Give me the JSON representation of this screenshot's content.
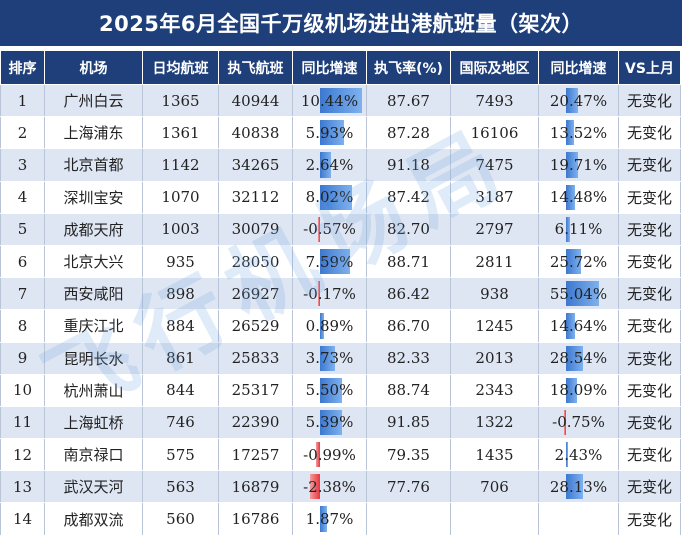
{
  "title": "2025年6月全国千万级机场进出港航班量（架次）",
  "watermark": "飞行机场局",
  "colors": {
    "header_bg": "#1e3f7a",
    "row_alt": "#dfe6f3",
    "bar_pos": "#3c78cf",
    "bar_neg": "#e8353b"
  },
  "columns": [
    "排序",
    "机场",
    "日均航班",
    "执飞航班",
    "同比增速",
    "执飞率(%)",
    "国际及地区",
    "同比增速",
    "VS上月"
  ],
  "rows": [
    {
      "rank": "1",
      "airport": "广州白云",
      "daily": "1365",
      "flights": "40944",
      "yoy": "10.44%",
      "yoy_num": 10.44,
      "exec_rate": "87.67",
      "intl": "7493",
      "intl_yoy": "20.47%",
      "intl_yoy_num": 20.47,
      "vs_last": "无变化"
    },
    {
      "rank": "2",
      "airport": "上海浦东",
      "daily": "1361",
      "flights": "40838",
      "yoy": "5.93%",
      "yoy_num": 5.93,
      "exec_rate": "87.28",
      "intl": "16106",
      "intl_yoy": "13.52%",
      "intl_yoy_num": 13.52,
      "vs_last": "无变化"
    },
    {
      "rank": "3",
      "airport": "北京首都",
      "daily": "1142",
      "flights": "34265",
      "yoy": "2.64%",
      "yoy_num": 2.64,
      "exec_rate": "91.18",
      "intl": "7475",
      "intl_yoy": "19.71%",
      "intl_yoy_num": 19.71,
      "vs_last": "无变化"
    },
    {
      "rank": "4",
      "airport": "深圳宝安",
      "daily": "1070",
      "flights": "32112",
      "yoy": "8.02%",
      "yoy_num": 8.02,
      "exec_rate": "87.42",
      "intl": "3187",
      "intl_yoy": "14.48%",
      "intl_yoy_num": 14.48,
      "vs_last": "无变化"
    },
    {
      "rank": "5",
      "airport": "成都天府",
      "daily": "1003",
      "flights": "30079",
      "yoy": "-0.57%",
      "yoy_num": -0.57,
      "exec_rate": "82.70",
      "intl": "2797",
      "intl_yoy": "6.11%",
      "intl_yoy_num": 6.11,
      "vs_last": "无变化"
    },
    {
      "rank": "6",
      "airport": "北京大兴",
      "daily": "935",
      "flights": "28050",
      "yoy": "7.59%",
      "yoy_num": 7.59,
      "exec_rate": "88.71",
      "intl": "2811",
      "intl_yoy": "25.72%",
      "intl_yoy_num": 25.72,
      "vs_last": "无变化"
    },
    {
      "rank": "7",
      "airport": "西安咸阳",
      "daily": "898",
      "flights": "26927",
      "yoy": "-0.17%",
      "yoy_num": -0.17,
      "exec_rate": "86.42",
      "intl": "938",
      "intl_yoy": "55.04%",
      "intl_yoy_num": 55.04,
      "vs_last": "无变化"
    },
    {
      "rank": "8",
      "airport": "重庆江北",
      "daily": "884",
      "flights": "26529",
      "yoy": "0.89%",
      "yoy_num": 0.89,
      "exec_rate": "86.70",
      "intl": "1245",
      "intl_yoy": "14.64%",
      "intl_yoy_num": 14.64,
      "vs_last": "无变化"
    },
    {
      "rank": "9",
      "airport": "昆明长水",
      "daily": "861",
      "flights": "25833",
      "yoy": "3.73%",
      "yoy_num": 3.73,
      "exec_rate": "82.33",
      "intl": "2013",
      "intl_yoy": "28.54%",
      "intl_yoy_num": 28.54,
      "vs_last": "无变化"
    },
    {
      "rank": "10",
      "airport": "杭州萧山",
      "daily": "844",
      "flights": "25317",
      "yoy": "5.50%",
      "yoy_num": 5.5,
      "exec_rate": "88.74",
      "intl": "2343",
      "intl_yoy": "18.09%",
      "intl_yoy_num": 18.09,
      "vs_last": "无变化"
    },
    {
      "rank": "11",
      "airport": "上海虹桥",
      "daily": "746",
      "flights": "22390",
      "yoy": "5.39%",
      "yoy_num": 5.39,
      "exec_rate": "91.85",
      "intl": "1322",
      "intl_yoy": "-0.75%",
      "intl_yoy_num": -0.75,
      "vs_last": "无变化"
    },
    {
      "rank": "12",
      "airport": "南京禄口",
      "daily": "575",
      "flights": "17257",
      "yoy": "-0.99%",
      "yoy_num": -0.99,
      "exec_rate": "79.35",
      "intl": "1435",
      "intl_yoy": "2.43%",
      "intl_yoy_num": 2.43,
      "vs_last": "无变化"
    },
    {
      "rank": "13",
      "airport": "武汉天河",
      "daily": "563",
      "flights": "16879",
      "yoy": "-2.38%",
      "yoy_num": -2.38,
      "exec_rate": "77.76",
      "intl": "706",
      "intl_yoy": "28.13%",
      "intl_yoy_num": 28.13,
      "vs_last": "无变化"
    },
    {
      "rank": "14",
      "airport": "成都双流",
      "daily": "560",
      "flights": "16786",
      "yoy": "1.87%",
      "yoy_num": 1.87,
      "exec_rate": "",
      "intl": "",
      "intl_yoy": "",
      "intl_yoy_num": 0,
      "vs_last": "无变化"
    }
  ]
}
